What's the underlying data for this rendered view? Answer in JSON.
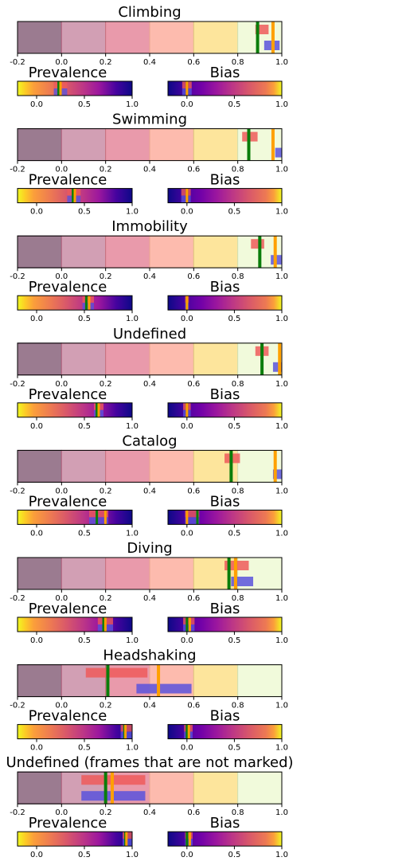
{
  "figure_label": "Prevalence and bias per behavior",
  "colorbar_labels": {
    "prevalence": "Prevalence",
    "bias": "Bias"
  },
  "main_axis": {
    "xlim": [
      -0.2,
      1.0
    ],
    "ticks": [
      "-0.2",
      "0.0",
      "0.2",
      "0.4",
      "0.6",
      "0.8",
      "1.0"
    ]
  },
  "prevalence_axis": {
    "xlim": [
      -0.2,
      1.0
    ],
    "ticks": [
      "0.0",
      "0.5",
      "1.0"
    ],
    "colormap": "plasma_r"
  },
  "bias_axis": {
    "xlim": [
      -0.2,
      1.0
    ],
    "ticks": [
      "0.0",
      "0.5",
      "1.0"
    ],
    "colormap": "plasma"
  },
  "colors": {
    "bands": [
      "#9b7b90",
      "#d29fb4",
      "#e99aab",
      "#fdbbae",
      "#fde59c",
      "#f1fadb"
    ],
    "band_borders": [
      "#6b3b5a",
      "#b5647f",
      "#c9737f",
      "#e9a68f",
      "#dec77e",
      "#cfe3b7"
    ],
    "red_range": "#ee5a5a",
    "blue_range": "#5a52dc",
    "green_line": "#0a7d0a",
    "orange_line": "#ffa000"
  },
  "chart_data": [
    {
      "title": "Climbing",
      "red_range": [
        0.88,
        0.94
      ],
      "blue_range": [
        0.92,
        0.99
      ],
      "green": 0.89,
      "orange": 0.96,
      "prevalence_green": 0.23,
      "prevalence_orange": 0.25,
      "prevalence_red": [
        0.18,
        0.32
      ],
      "prevalence_blue": [
        0.18,
        0.32
      ],
      "bias_green": 0.0,
      "bias_orange": 0.0,
      "bias_red": [
        -0.05,
        0.05
      ],
      "bias_blue": [
        -0.05,
        0.05
      ]
    },
    {
      "title": "Swimming",
      "red_range": [
        0.82,
        0.89
      ],
      "blue_range": [
        0.97,
        1.0
      ],
      "green": 0.85,
      "orange": 0.96,
      "prevalence_green": 0.38,
      "prevalence_orange": 0.4,
      "prevalence_red": [
        0.32,
        0.46
      ],
      "prevalence_blue": [
        0.32,
        0.46
      ],
      "bias_green": 0.0,
      "bias_orange": 0.0,
      "bias_red": [
        -0.06,
        0.04
      ],
      "bias_blue": [
        -0.06,
        0.04
      ]
    },
    {
      "title": "Immobility",
      "red_range": [
        0.86,
        0.92
      ],
      "blue_range": [
        0.95,
        1.0
      ],
      "green": 0.9,
      "orange": 0.97,
      "prevalence_green": 0.52,
      "prevalence_orange": 0.55,
      "prevalence_red": [
        0.48,
        0.6
      ],
      "prevalence_blue": [
        0.48,
        0.6
      ],
      "bias_green": 0.0,
      "bias_orange": 0.0,
      "bias_red": [
        -0.02,
        0.02
      ],
      "bias_blue": [
        -0.02,
        0.02
      ]
    },
    {
      "title": "Undefined",
      "red_range": [
        0.88,
        0.94
      ],
      "blue_range": [
        0.96,
        1.0
      ],
      "green": 0.91,
      "orange": 0.99,
      "prevalence_green": 0.63,
      "prevalence_orange": 0.65,
      "prevalence_red": [
        0.6,
        0.7
      ],
      "prevalence_blue": [
        0.6,
        0.7
      ],
      "bias_green": 0.0,
      "bias_orange": 0.0,
      "bias_red": [
        -0.04,
        0.04
      ],
      "bias_blue": [
        -0.04,
        0.04
      ]
    },
    {
      "title": "Catalog",
      "red_range": [
        0.74,
        0.81
      ],
      "blue_range": [
        0.96,
        1.0
      ],
      "green": 0.77,
      "orange": 0.97,
      "prevalence_green": 0.63,
      "prevalence_orange": 0.72,
      "prevalence_red": [
        0.55,
        0.75
      ],
      "prevalence_blue": [
        0.55,
        0.75
      ],
      "bias_green": 0.11,
      "bias_orange": 0.0,
      "bias_red": [
        -0.02,
        0.13
      ],
      "bias_blue": [
        -0.02,
        0.13
      ]
    },
    {
      "title": "Diving",
      "red_range": [
        0.74,
        0.85
      ],
      "blue_range": [
        0.77,
        0.87
      ],
      "green": 0.76,
      "orange": 0.79,
      "prevalence_green": 0.7,
      "prevalence_orange": 0.72,
      "prevalence_red": [
        0.64,
        0.8
      ],
      "prevalence_blue": [
        0.64,
        0.8
      ],
      "bias_green": 0.0,
      "bias_orange": 0.03,
      "bias_red": [
        -0.04,
        0.08
      ],
      "bias_blue": [
        -0.04,
        0.08
      ]
    },
    {
      "title": "Headshaking",
      "red_range": [
        0.11,
        0.39
      ],
      "blue_range": [
        0.34,
        0.59
      ],
      "green": 0.21,
      "orange": 0.44,
      "prevalence_green": 0.92,
      "prevalence_orange": 0.93,
      "prevalence_red": [
        0.88,
        1.0
      ],
      "prevalence_blue": [
        0.88,
        1.0
      ],
      "bias_green": 0.0,
      "bias_orange": 0.02,
      "bias_red": [
        -0.03,
        0.06
      ],
      "bias_blue": [
        -0.03,
        0.06
      ]
    },
    {
      "title": "Undefined (frames that are not marked)",
      "red_range": [
        0.09,
        0.38
      ],
      "blue_range": [
        0.09,
        0.38
      ],
      "green": 0.2,
      "orange": 0.23,
      "prevalence_green": 0.93,
      "prevalence_orange": 0.94,
      "prevalence_red": [
        0.9,
        1.0
      ],
      "prevalence_blue": [
        0.9,
        1.0
      ],
      "bias_green": 0.0,
      "bias_orange": 0.03,
      "bias_red": [
        -0.02,
        0.06
      ],
      "bias_blue": [
        -0.02,
        0.06
      ]
    }
  ]
}
